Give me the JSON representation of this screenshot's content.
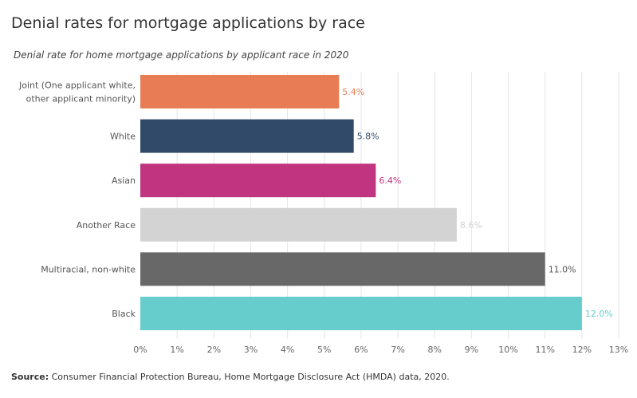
{
  "title": "Denial rates for mortgage applications by race",
  "subtitle": "Denial rate for home mortgage applications by applicant race in 2020",
  "source": {
    "label": "Source:",
    "text": " Consumer Financial Protection Bureau, Home Mortgage Disclosure Act (HMDA) data, 2020."
  },
  "chart_data": {
    "type": "bar",
    "orientation": "horizontal",
    "categories": [
      [
        "Joint (One applicant white,",
        "other applicant minority)"
      ],
      [
        "White"
      ],
      [
        "Asian"
      ],
      [
        "Another Race"
      ],
      [
        "Multiracial, non-white"
      ],
      [
        "Black"
      ]
    ],
    "values": [
      5.4,
      5.8,
      6.4,
      8.6,
      11.0,
      12.0
    ],
    "value_labels": [
      "5.4%",
      "5.8%",
      "6.4%",
      "8.6%",
      "11.0%",
      "12.0%"
    ],
    "colors": [
      "#E77C55",
      "#324A69",
      "#C03480",
      "#D3D3D3",
      "#686868",
      "#66CDCC"
    ],
    "label_colors": [
      "#E77C55",
      "#324A69",
      "#C03480",
      "#D3D3D3",
      "#555555",
      "#66CDCC"
    ],
    "xlim": [
      0,
      13
    ],
    "xticks": [
      0,
      1,
      2,
      3,
      4,
      5,
      6,
      7,
      8,
      9,
      10,
      11,
      12,
      13
    ],
    "xtick_labels": [
      "0%",
      "1%",
      "2%",
      "3%",
      "4%",
      "5%",
      "6%",
      "7%",
      "8%",
      "9%",
      "10%",
      "11%",
      "12%",
      "13%"
    ],
    "grid": true,
    "grid_axis": "x"
  }
}
